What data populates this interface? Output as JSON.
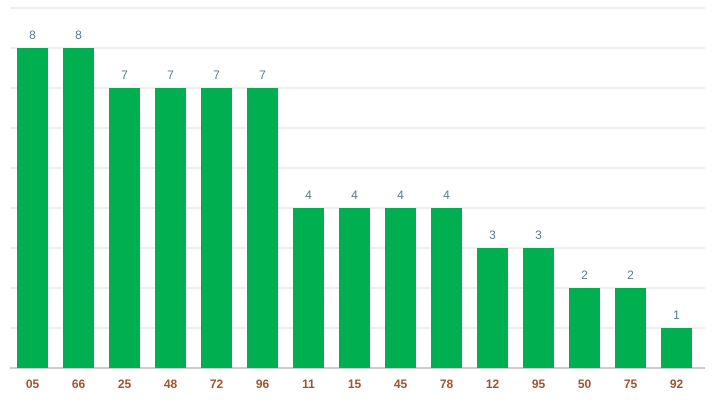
{
  "chart_data": {
    "type": "bar",
    "categories": [
      "05",
      "66",
      "25",
      "48",
      "72",
      "96",
      "11",
      "15",
      "45",
      "78",
      "12",
      "95",
      "50",
      "75",
      "92"
    ],
    "values": [
      8,
      8,
      7,
      7,
      7,
      7,
      4,
      4,
      4,
      4,
      3,
      3,
      2,
      2,
      1
    ],
    "color": "#00b050",
    "ylim": [
      0,
      9
    ],
    "yticks": [
      0,
      1,
      2,
      3,
      4,
      5,
      6,
      7,
      8,
      9
    ],
    "grid": true
  }
}
